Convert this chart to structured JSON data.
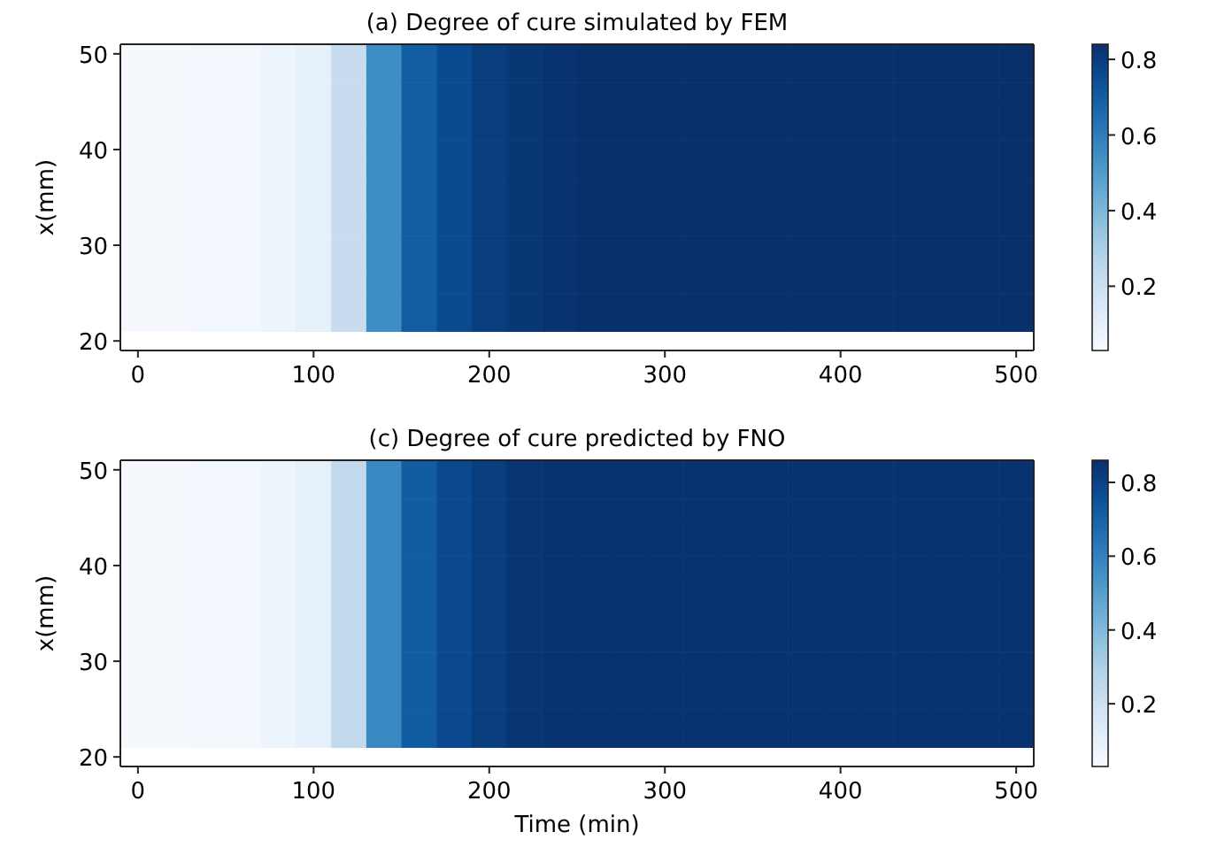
{
  "chart_data": [
    {
      "type": "heatmap",
      "title": "(a) Degree of cure simulated by FEM",
      "ylabel": "x(mm)",
      "clim": [
        0.03,
        0.84
      ],
      "cticks": [
        0.2,
        0.4,
        0.6,
        0.8
      ],
      "categories": [
        "0",
        null,
        null,
        null,
        null,
        "100",
        null,
        null,
        null,
        null,
        "200",
        null,
        null,
        null,
        null,
        "300",
        null,
        null,
        null,
        null,
        "400",
        null,
        null,
        null,
        null,
        "500"
      ],
      "y_categories": [
        "50",
        null,
        null,
        null,
        null,
        "40",
        null,
        null,
        null,
        null,
        "30",
        null,
        null,
        null,
        null,
        "20"
      ],
      "cells": [
        [
          0.04,
          0.04,
          0.05,
          0.05,
          0.07,
          0.1,
          0.22,
          0.55,
          0.7,
          0.76,
          0.8,
          0.82,
          0.83,
          0.84,
          0.84,
          0.84,
          0.84,
          0.84,
          0.84,
          0.84,
          0.84,
          0.84,
          0.84,
          0.84,
          0.84,
          0.84
        ],
        [
          0.04,
          0.04,
          0.05,
          0.05,
          0.07,
          0.1,
          0.22,
          0.55,
          0.7,
          0.76,
          0.8,
          0.82,
          0.83,
          0.84,
          0.84,
          0.84,
          0.84,
          0.84,
          0.84,
          0.84,
          0.84,
          0.84,
          0.84,
          0.84,
          0.84,
          0.84
        ],
        [
          0.04,
          0.04,
          0.05,
          0.05,
          0.07,
          0.1,
          0.22,
          0.55,
          0.7,
          0.76,
          0.8,
          0.82,
          0.83,
          0.84,
          0.84,
          0.84,
          0.84,
          0.84,
          0.84,
          0.84,
          0.84,
          0.84,
          0.84,
          0.84,
          0.84,
          0.84
        ],
        [
          0.04,
          0.04,
          0.05,
          0.05,
          0.07,
          0.1,
          0.22,
          0.55,
          0.7,
          0.76,
          0.8,
          0.82,
          0.83,
          0.84,
          0.84,
          0.84,
          0.84,
          0.84,
          0.84,
          0.84,
          0.84,
          0.84,
          0.84,
          0.84,
          0.84,
          0.84
        ],
        [
          0.04,
          0.04,
          0.05,
          0.05,
          0.07,
          0.1,
          0.22,
          0.55,
          0.7,
          0.76,
          0.8,
          0.82,
          0.83,
          0.84,
          0.84,
          0.84,
          0.84,
          0.84,
          0.84,
          0.84,
          0.84,
          0.84,
          0.84,
          0.84,
          0.84,
          0.84
        ],
        [
          0.04,
          0.04,
          0.05,
          0.05,
          0.07,
          0.1,
          0.22,
          0.55,
          0.7,
          0.76,
          0.8,
          0.82,
          0.83,
          0.84,
          0.84,
          0.84,
          0.84,
          0.84,
          0.84,
          0.84,
          0.84,
          0.84,
          0.84,
          0.84,
          0.84,
          0.84
        ],
        [
          0.04,
          0.04,
          0.05,
          0.05,
          0.07,
          0.1,
          0.22,
          0.55,
          0.7,
          0.76,
          0.8,
          0.82,
          0.83,
          0.84,
          0.84,
          0.84,
          0.84,
          0.84,
          0.84,
          0.84,
          0.84,
          0.84,
          0.84,
          0.84,
          0.84,
          0.84
        ],
        [
          0.04,
          0.04,
          0.05,
          0.05,
          0.07,
          0.1,
          0.22,
          0.55,
          0.7,
          0.76,
          0.8,
          0.82,
          0.83,
          0.84,
          0.84,
          0.84,
          0.84,
          0.84,
          0.84,
          0.84,
          0.84,
          0.84,
          0.84,
          0.84,
          0.84,
          0.84
        ],
        [
          0.04,
          0.04,
          0.05,
          0.05,
          0.07,
          0.1,
          0.22,
          0.55,
          0.7,
          0.76,
          0.8,
          0.82,
          0.83,
          0.84,
          0.84,
          0.84,
          0.84,
          0.84,
          0.84,
          0.84,
          0.84,
          0.84,
          0.84,
          0.84,
          0.84,
          0.84
        ],
        [
          0.04,
          0.04,
          0.05,
          0.05,
          0.07,
          0.1,
          0.22,
          0.55,
          0.7,
          0.76,
          0.8,
          0.82,
          0.83,
          0.84,
          0.84,
          0.84,
          0.84,
          0.84,
          0.84,
          0.84,
          0.84,
          0.84,
          0.84,
          0.84,
          0.84,
          0.84
        ],
        [
          0.04,
          0.04,
          0.05,
          0.05,
          0.07,
          0.1,
          0.22,
          0.55,
          0.7,
          0.76,
          0.8,
          0.82,
          0.83,
          0.84,
          0.84,
          0.84,
          0.84,
          0.84,
          0.84,
          0.84,
          0.84,
          0.84,
          0.84,
          0.84,
          0.84,
          0.84
        ],
        [
          0.04,
          0.04,
          0.05,
          0.05,
          0.07,
          0.1,
          0.22,
          0.55,
          0.7,
          0.76,
          0.8,
          0.82,
          0.83,
          0.84,
          0.84,
          0.84,
          0.84,
          0.84,
          0.84,
          0.84,
          0.84,
          0.84,
          0.84,
          0.84,
          0.84,
          0.84
        ],
        [
          0.04,
          0.04,
          0.05,
          0.05,
          0.07,
          0.1,
          0.22,
          0.55,
          0.7,
          0.76,
          0.8,
          0.82,
          0.83,
          0.84,
          0.84,
          0.84,
          0.84,
          0.84,
          0.84,
          0.84,
          0.84,
          0.84,
          0.84,
          0.84,
          0.84,
          0.84
        ],
        [
          0.04,
          0.04,
          0.05,
          0.05,
          0.07,
          0.1,
          0.22,
          0.55,
          0.7,
          0.76,
          0.8,
          0.82,
          0.83,
          0.84,
          0.84,
          0.84,
          0.84,
          0.84,
          0.84,
          0.84,
          0.84,
          0.84,
          0.84,
          0.84,
          0.84,
          0.84
        ],
        [
          0.04,
          0.04,
          0.05,
          0.05,
          0.07,
          0.1,
          0.22,
          0.55,
          0.7,
          0.76,
          0.8,
          0.82,
          0.83,
          0.84,
          0.84,
          0.84,
          0.84,
          0.84,
          0.84,
          0.84,
          0.84,
          0.84,
          0.84,
          0.84,
          0.84,
          0.84
        ],
        [
          null,
          null,
          null,
          null,
          null,
          null,
          null,
          null,
          null,
          null,
          null,
          null,
          null,
          null,
          null,
          null,
          null,
          null,
          null,
          null,
          null,
          null,
          null,
          null,
          null,
          null
        ]
      ]
    },
    {
      "type": "heatmap",
      "title": "(c) Degree of cure predicted by FNO",
      "xlabel": "Time (min)",
      "ylabel": "x(mm)",
      "clim": [
        0.03,
        0.86
      ],
      "cticks": [
        0.2,
        0.4,
        0.6,
        0.8
      ],
      "categories": [
        "0",
        null,
        null,
        null,
        null,
        "100",
        null,
        null,
        null,
        null,
        "200",
        null,
        null,
        null,
        null,
        "300",
        null,
        null,
        null,
        null,
        "400",
        null,
        null,
        null,
        null,
        "500"
      ],
      "y_categories": [
        "50",
        null,
        null,
        null,
        null,
        "40",
        null,
        null,
        null,
        null,
        "30",
        null,
        null,
        null,
        null,
        "20"
      ],
      "cells": [
        [
          0.04,
          0.04,
          0.05,
          0.05,
          0.07,
          0.1,
          0.24,
          0.58,
          0.72,
          0.78,
          0.82,
          0.84,
          0.85,
          0.85,
          0.85,
          0.85,
          0.85,
          0.85,
          0.85,
          0.85,
          0.85,
          0.85,
          0.85,
          0.85,
          0.85,
          0.85
        ],
        [
          0.04,
          0.04,
          0.05,
          0.05,
          0.07,
          0.1,
          0.24,
          0.58,
          0.72,
          0.78,
          0.82,
          0.84,
          0.85,
          0.85,
          0.85,
          0.85,
          0.85,
          0.85,
          0.85,
          0.85,
          0.85,
          0.85,
          0.85,
          0.85,
          0.85,
          0.85
        ],
        [
          0.04,
          0.04,
          0.05,
          0.05,
          0.07,
          0.1,
          0.24,
          0.58,
          0.72,
          0.78,
          0.82,
          0.84,
          0.85,
          0.85,
          0.85,
          0.85,
          0.85,
          0.85,
          0.85,
          0.85,
          0.85,
          0.85,
          0.85,
          0.85,
          0.85,
          0.85
        ],
        [
          0.04,
          0.04,
          0.05,
          0.05,
          0.07,
          0.1,
          0.24,
          0.58,
          0.72,
          0.78,
          0.82,
          0.84,
          0.85,
          0.85,
          0.85,
          0.85,
          0.85,
          0.85,
          0.85,
          0.85,
          0.85,
          0.85,
          0.85,
          0.85,
          0.85,
          0.85
        ],
        [
          0.04,
          0.04,
          0.05,
          0.05,
          0.07,
          0.1,
          0.24,
          0.58,
          0.72,
          0.78,
          0.82,
          0.84,
          0.85,
          0.85,
          0.85,
          0.85,
          0.85,
          0.85,
          0.85,
          0.85,
          0.85,
          0.85,
          0.85,
          0.85,
          0.85,
          0.85
        ],
        [
          0.04,
          0.04,
          0.05,
          0.05,
          0.07,
          0.1,
          0.24,
          0.58,
          0.72,
          0.78,
          0.82,
          0.84,
          0.85,
          0.85,
          0.85,
          0.85,
          0.85,
          0.85,
          0.85,
          0.85,
          0.85,
          0.85,
          0.85,
          0.85,
          0.85,
          0.85
        ],
        [
          0.04,
          0.04,
          0.05,
          0.05,
          0.07,
          0.1,
          0.24,
          0.58,
          0.72,
          0.78,
          0.82,
          0.84,
          0.85,
          0.85,
          0.85,
          0.85,
          0.85,
          0.85,
          0.85,
          0.85,
          0.85,
          0.85,
          0.85,
          0.85,
          0.85,
          0.85
        ],
        [
          0.04,
          0.04,
          0.05,
          0.05,
          0.07,
          0.1,
          0.24,
          0.58,
          0.72,
          0.78,
          0.82,
          0.84,
          0.85,
          0.85,
          0.85,
          0.85,
          0.85,
          0.85,
          0.85,
          0.85,
          0.85,
          0.85,
          0.85,
          0.85,
          0.85,
          0.85
        ],
        [
          0.04,
          0.04,
          0.05,
          0.05,
          0.07,
          0.1,
          0.24,
          0.58,
          0.72,
          0.78,
          0.82,
          0.84,
          0.85,
          0.85,
          0.85,
          0.85,
          0.85,
          0.85,
          0.85,
          0.85,
          0.85,
          0.85,
          0.85,
          0.85,
          0.85,
          0.85
        ],
        [
          0.04,
          0.04,
          0.05,
          0.05,
          0.07,
          0.1,
          0.24,
          0.58,
          0.72,
          0.78,
          0.82,
          0.84,
          0.85,
          0.85,
          0.85,
          0.85,
          0.85,
          0.85,
          0.85,
          0.85,
          0.85,
          0.85,
          0.85,
          0.85,
          0.85,
          0.85
        ],
        [
          0.04,
          0.04,
          0.05,
          0.05,
          0.07,
          0.1,
          0.24,
          0.58,
          0.72,
          0.78,
          0.82,
          0.84,
          0.85,
          0.85,
          0.85,
          0.85,
          0.85,
          0.85,
          0.85,
          0.85,
          0.85,
          0.85,
          0.85,
          0.85,
          0.85,
          0.85
        ],
        [
          0.04,
          0.04,
          0.05,
          0.05,
          0.07,
          0.1,
          0.24,
          0.58,
          0.72,
          0.78,
          0.82,
          0.84,
          0.85,
          0.85,
          0.85,
          0.85,
          0.85,
          0.85,
          0.85,
          0.85,
          0.85,
          0.85,
          0.85,
          0.85,
          0.85,
          0.85
        ],
        [
          0.04,
          0.04,
          0.05,
          0.05,
          0.07,
          0.1,
          0.24,
          0.58,
          0.72,
          0.78,
          0.82,
          0.84,
          0.85,
          0.85,
          0.85,
          0.85,
          0.85,
          0.85,
          0.85,
          0.85,
          0.85,
          0.85,
          0.85,
          0.85,
          0.85,
          0.85
        ],
        [
          0.04,
          0.04,
          0.05,
          0.05,
          0.07,
          0.1,
          0.24,
          0.58,
          0.72,
          0.78,
          0.82,
          0.84,
          0.85,
          0.85,
          0.85,
          0.85,
          0.85,
          0.85,
          0.85,
          0.85,
          0.85,
          0.85,
          0.85,
          0.85,
          0.85,
          0.85
        ],
        [
          0.04,
          0.04,
          0.05,
          0.05,
          0.07,
          0.1,
          0.24,
          0.58,
          0.72,
          0.78,
          0.82,
          0.84,
          0.85,
          0.85,
          0.85,
          0.85,
          0.85,
          0.85,
          0.85,
          0.85,
          0.85,
          0.85,
          0.85,
          0.85,
          0.85,
          0.85
        ],
        [
          null,
          null,
          null,
          null,
          null,
          null,
          null,
          null,
          null,
          null,
          null,
          null,
          null,
          null,
          null,
          null,
          null,
          null,
          null,
          null,
          null,
          null,
          null,
          null,
          null,
          null
        ]
      ]
    }
  ]
}
